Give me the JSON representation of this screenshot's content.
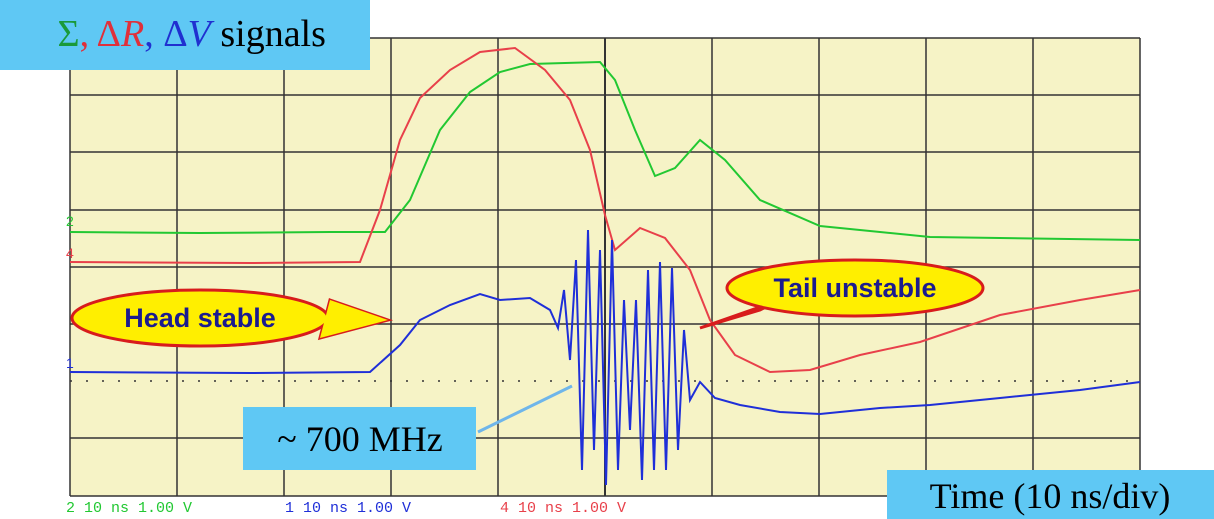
{
  "title": {
    "parts": [
      "Σ",
      ", Δ",
      "R",
      ", Δ",
      "V",
      " signals"
    ]
  },
  "channels": {
    "green": "2",
    "red": "4",
    "blue": "1"
  },
  "callouts": {
    "head": "Head stable",
    "tail": "Tail unstable",
    "frequency": "~ 700 MHz",
    "time": "Time (10 ns/div)"
  },
  "status": {
    "ch2": "2 10 ns 1.00 V",
    "ch1": "1 10 ns 1.00 V",
    "ch4": "4 10 ns 1.00 V"
  }
}
